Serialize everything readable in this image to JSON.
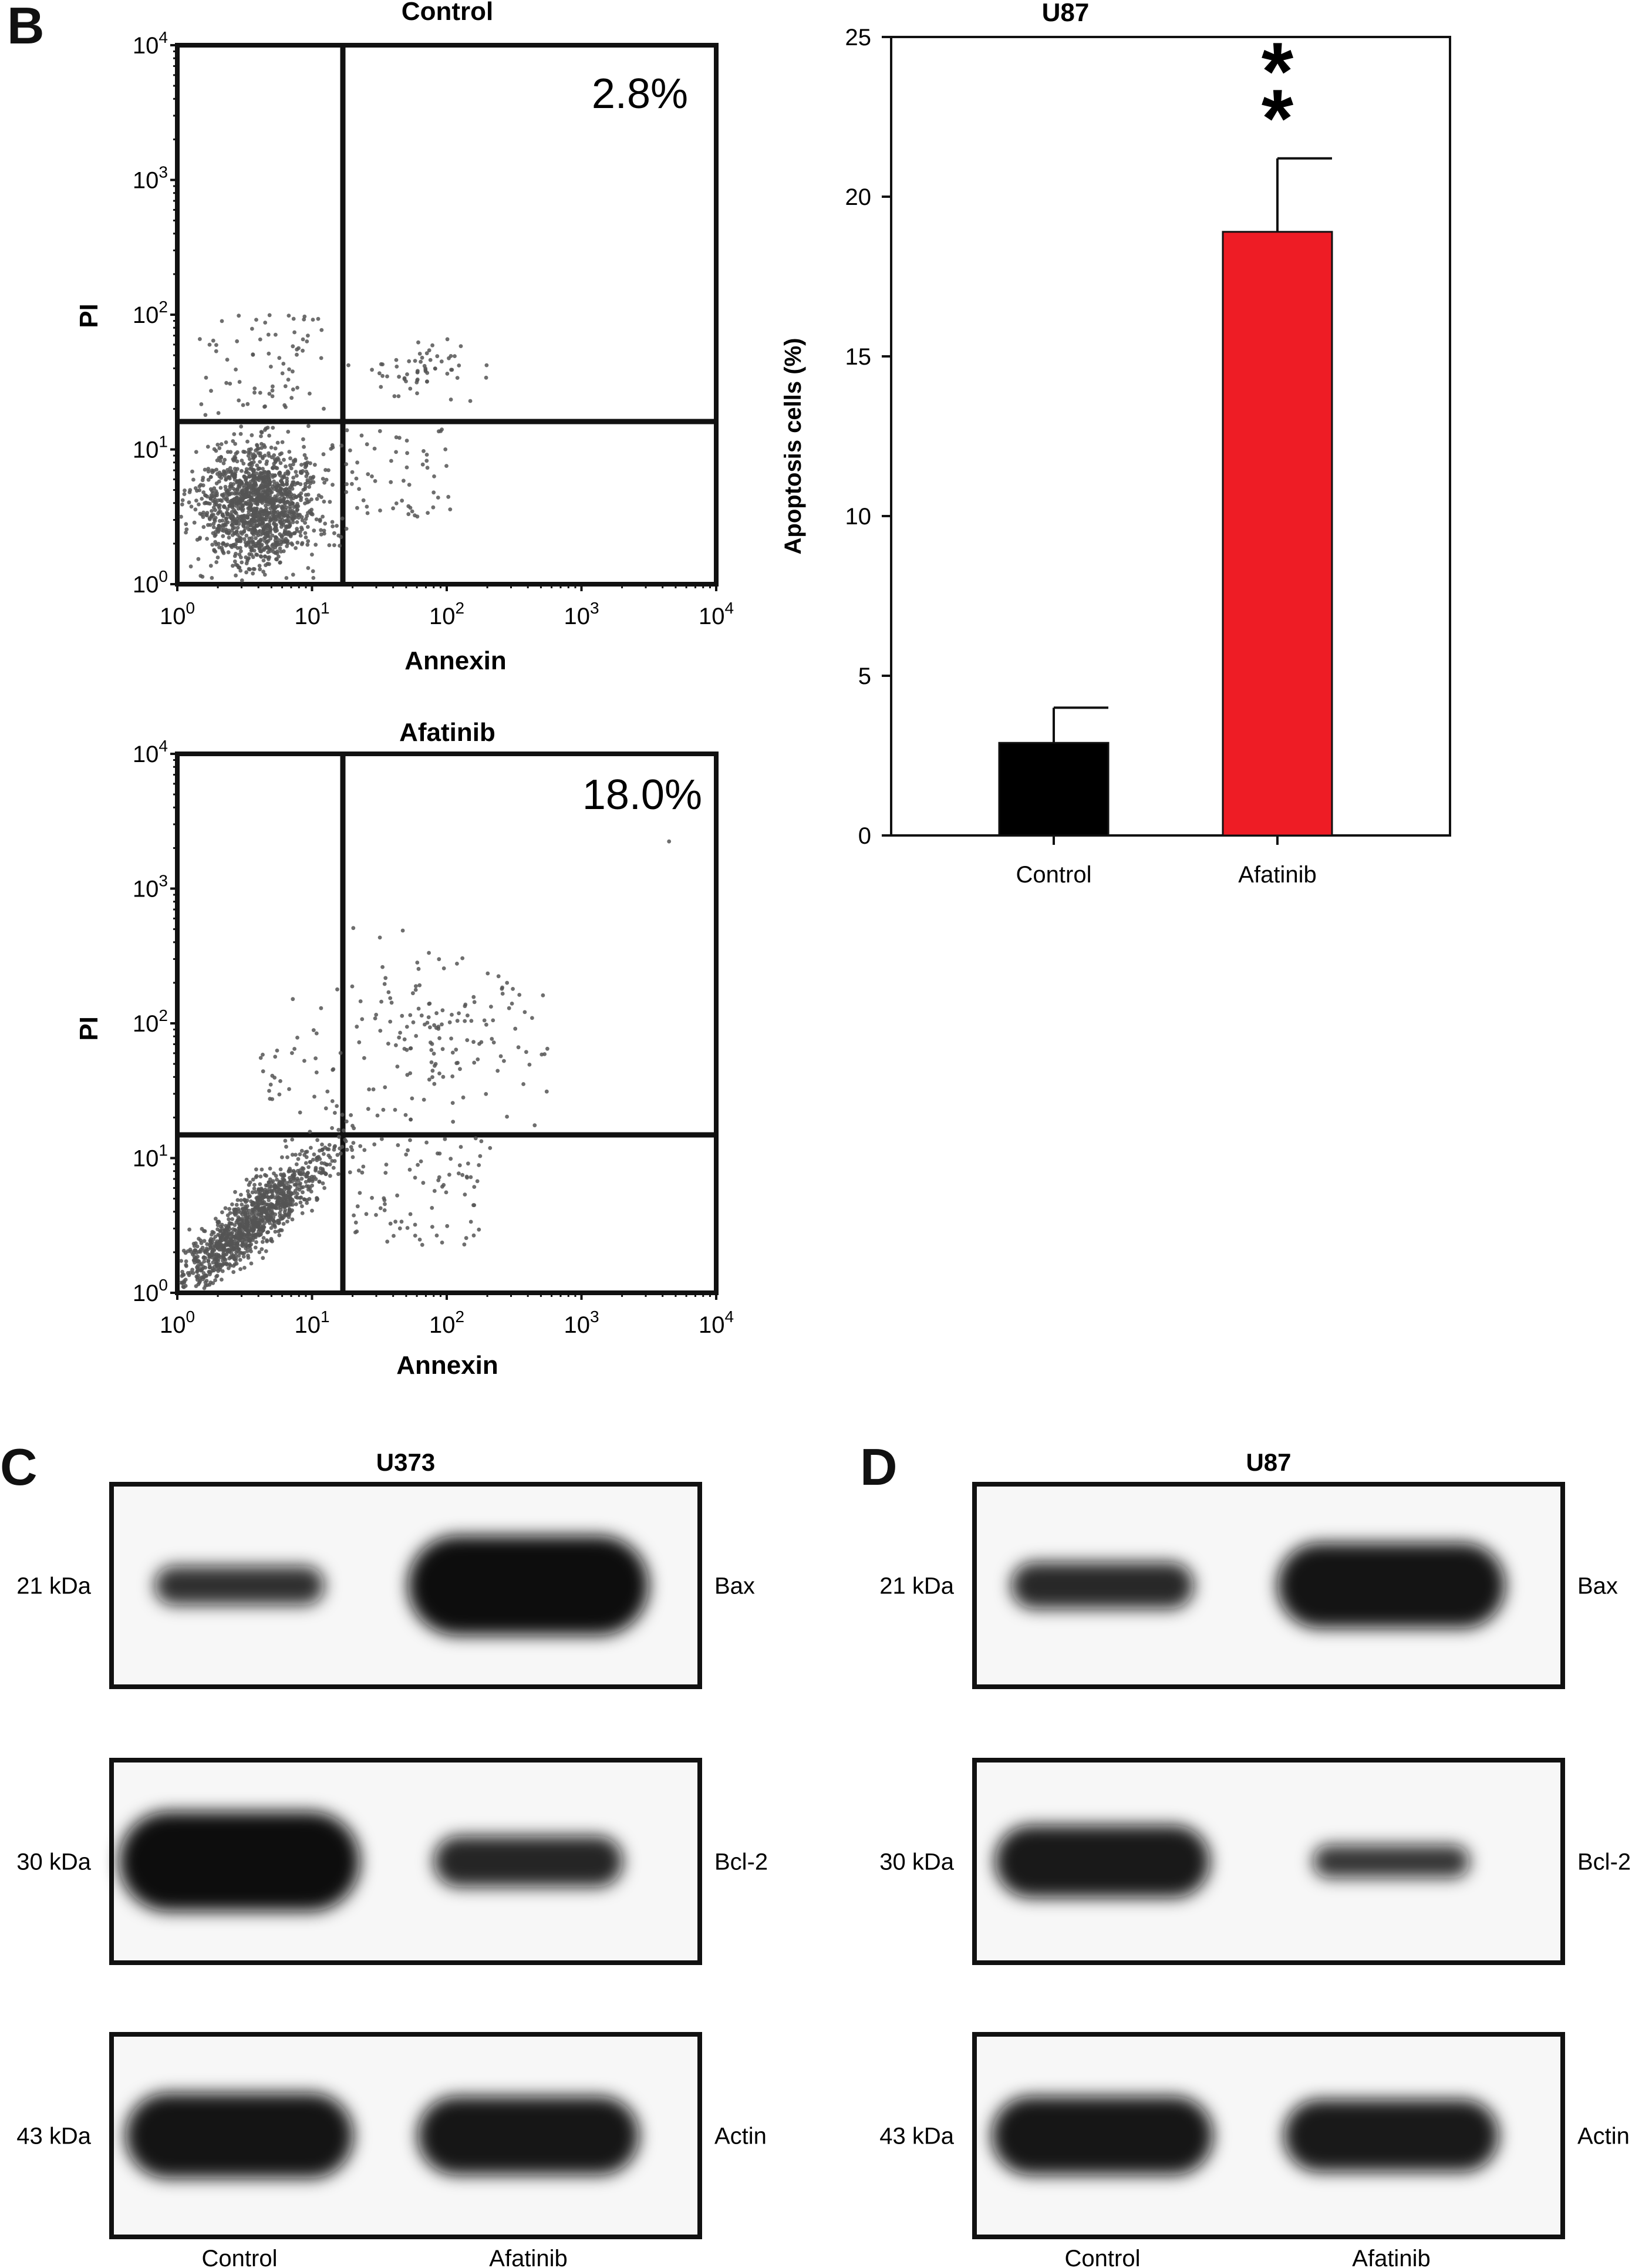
{
  "panel_letters": {
    "b": "B",
    "c": "C",
    "d": "D"
  },
  "flow": {
    "control": {
      "title": "Control",
      "percent": "2.8%",
      "xlabel": "Annexin",
      "ylabel": "PI"
    },
    "afatinib": {
      "title": "Afatinib",
      "percent": "18.0%",
      "xlabel": "Annexin",
      "ylabel": "PI"
    },
    "tick_exponents": [
      "0",
      "1",
      "2",
      "3",
      "4"
    ],
    "tick_base": "10"
  },
  "chart_data": [
    {
      "type": "scatter",
      "title": "Control",
      "xlabel": "Annexin",
      "ylabel": "PI",
      "xscale": "log",
      "yscale": "log",
      "xlim": [
        1,
        10000
      ],
      "ylim": [
        1,
        10000
      ],
      "quadrant_gate": {
        "x": 15,
        "y": 15
      },
      "annotation": "2.8%"
    },
    {
      "type": "scatter",
      "title": "Afatinib",
      "xlabel": "Annexin",
      "ylabel": "PI",
      "xscale": "log",
      "yscale": "log",
      "xlim": [
        1,
        10000
      ],
      "ylim": [
        1,
        10000
      ],
      "quadrant_gate": {
        "x": 15,
        "y": 15
      },
      "annotation": "18.0%"
    },
    {
      "type": "bar",
      "title": "U87",
      "categories": [
        "Control",
        "Afatinib"
      ],
      "values": [
        2.9,
        18.9
      ],
      "errors": [
        1.1,
        2.3
      ],
      "colors": [
        "#000000",
        "#ee1c25"
      ],
      "significance": [
        "",
        "**"
      ],
      "ylabel": "Apoptosis cells (%)",
      "xlabel": "",
      "ylim": [
        0,
        25
      ],
      "yticks": [
        0,
        5,
        10,
        15,
        20,
        25
      ]
    }
  ],
  "blots": [
    {
      "title": "U373",
      "lanes": [
        "Control",
        "Afatinib"
      ],
      "rows": [
        {
          "size": "21 kDa",
          "protein": "Bax",
          "intensity": [
            0.45,
            1.0
          ]
        },
        {
          "size": "30 kDa",
          "protein": "Bcl-2",
          "intensity": [
            1.0,
            0.6
          ]
        },
        {
          "size": "43 kDa",
          "protein": "Actin",
          "intensity": [
            0.9,
            0.85
          ]
        }
      ]
    },
    {
      "title": "U87",
      "lanes": [
        "Control",
        "Afatinib"
      ],
      "rows": [
        {
          "size": "21 kDa",
          "protein": "Bax",
          "intensity": [
            0.55,
            0.9
          ]
        },
        {
          "size": "30 kDa",
          "protein": "Bcl-2",
          "intensity": [
            0.8,
            0.35
          ]
        },
        {
          "size": "43 kDa",
          "protein": "Actin",
          "intensity": [
            0.85,
            0.8
          ]
        }
      ]
    }
  ]
}
